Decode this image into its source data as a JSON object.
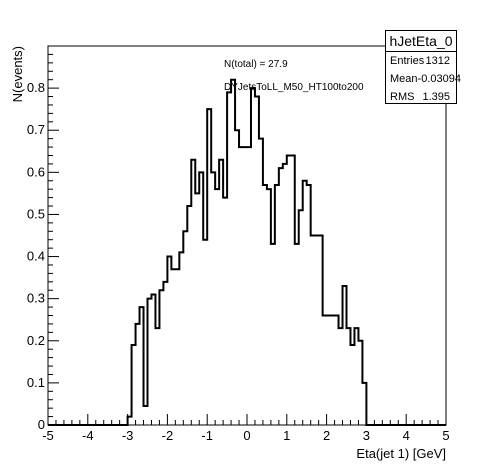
{
  "chart_data": {
    "type": "histogram",
    "xlabel": "Eta(jet 1) [GeV]",
    "ylabel": "N(events)",
    "xlim": [
      -5,
      5
    ],
    "ylim": [
      0,
      0.9
    ],
    "x_ticks": [
      -5,
      -4,
      -3,
      -2,
      -1,
      0,
      1,
      2,
      3,
      4,
      5
    ],
    "y_ticks": [
      0,
      0.1,
      0.2,
      0.3,
      0.4,
      0.5,
      0.6,
      0.7,
      0.8
    ],
    "bin_width": 0.1,
    "bins_x_start": -3.0,
    "values": [
      0.02,
      0.19,
      0.24,
      0.28,
      0.045,
      0.3,
      0.31,
      0.23,
      0.32,
      0.34,
      0.4,
      0.37,
      0.37,
      0.41,
      0.46,
      0.52,
      0.63,
      0.55,
      0.6,
      0.44,
      0.75,
      0.6,
      0.56,
      0.63,
      0.54,
      0.79,
      0.82,
      0.7,
      0.66,
      0.66,
      0.66,
      0.8,
      0.78,
      0.68,
      0.57,
      0.56,
      0.43,
      0.57,
      0.61,
      0.62,
      0.64,
      0.64,
      0.43,
      0.51,
      0.58,
      0.57,
      0.45,
      0.45,
      0.45,
      0.26,
      0.26,
      0.26,
      0.26,
      0.23,
      0.33,
      0.23,
      0.19,
      0.23,
      0.2,
      0.1,
      0.0
    ],
    "stats": {
      "title": "hJetEta_0",
      "rows": [
        {
          "label": "Entries",
          "value": "1312"
        },
        {
          "label": "Mean",
          "value": "-0.03094"
        },
        {
          "label": "RMS",
          "value": "1.395"
        }
      ]
    },
    "annotations": [
      "N(total) = 27.9",
      "DYJetsToLL_M50_HT100to200"
    ]
  }
}
